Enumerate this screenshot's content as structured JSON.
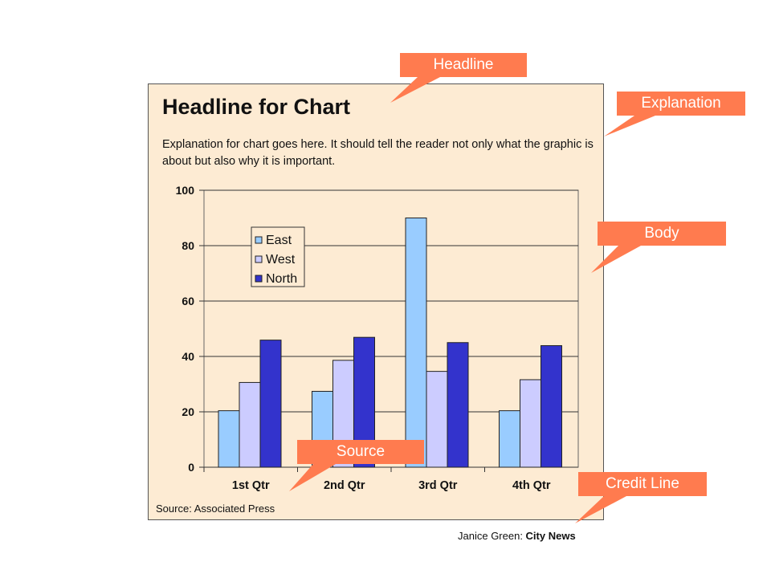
{
  "headline": "Headline for Chart",
  "explanation": "Explanation for chart goes here. It should tell the reader not only what the graphic is about but also why it is important.",
  "source": "Source: Associated Press",
  "credit": {
    "author": "Janice Green: ",
    "outlet": "City News"
  },
  "callouts": {
    "headline": "Headline",
    "explanation": "Explanation",
    "body": "Body",
    "source": "Source",
    "credit": "Credit Line"
  },
  "colors": {
    "panel_bg": "#fdebd3",
    "callout": "#ff7b4f",
    "east": "#99ccff",
    "west": "#ccccff",
    "north": "#3333cc"
  },
  "chart_data": {
    "type": "bar",
    "categories": [
      "1st  Qtr",
      "2nd  Qtr",
      "3rd  Qtr",
      "4th  Qtr"
    ],
    "series": [
      {
        "name": "East",
        "values": [
          20.4,
          27.4,
          90,
          20.4
        ]
      },
      {
        "name": "West",
        "values": [
          30.6,
          38.6,
          34.6,
          31.6
        ]
      },
      {
        "name": "North",
        "values": [
          45.9,
          46.9,
          45,
          43.9
        ]
      }
    ],
    "ylim": [
      0,
      100
    ],
    "yticks": [
      0,
      20,
      40,
      60,
      80,
      100
    ],
    "grid": true,
    "legend": "top-left"
  }
}
